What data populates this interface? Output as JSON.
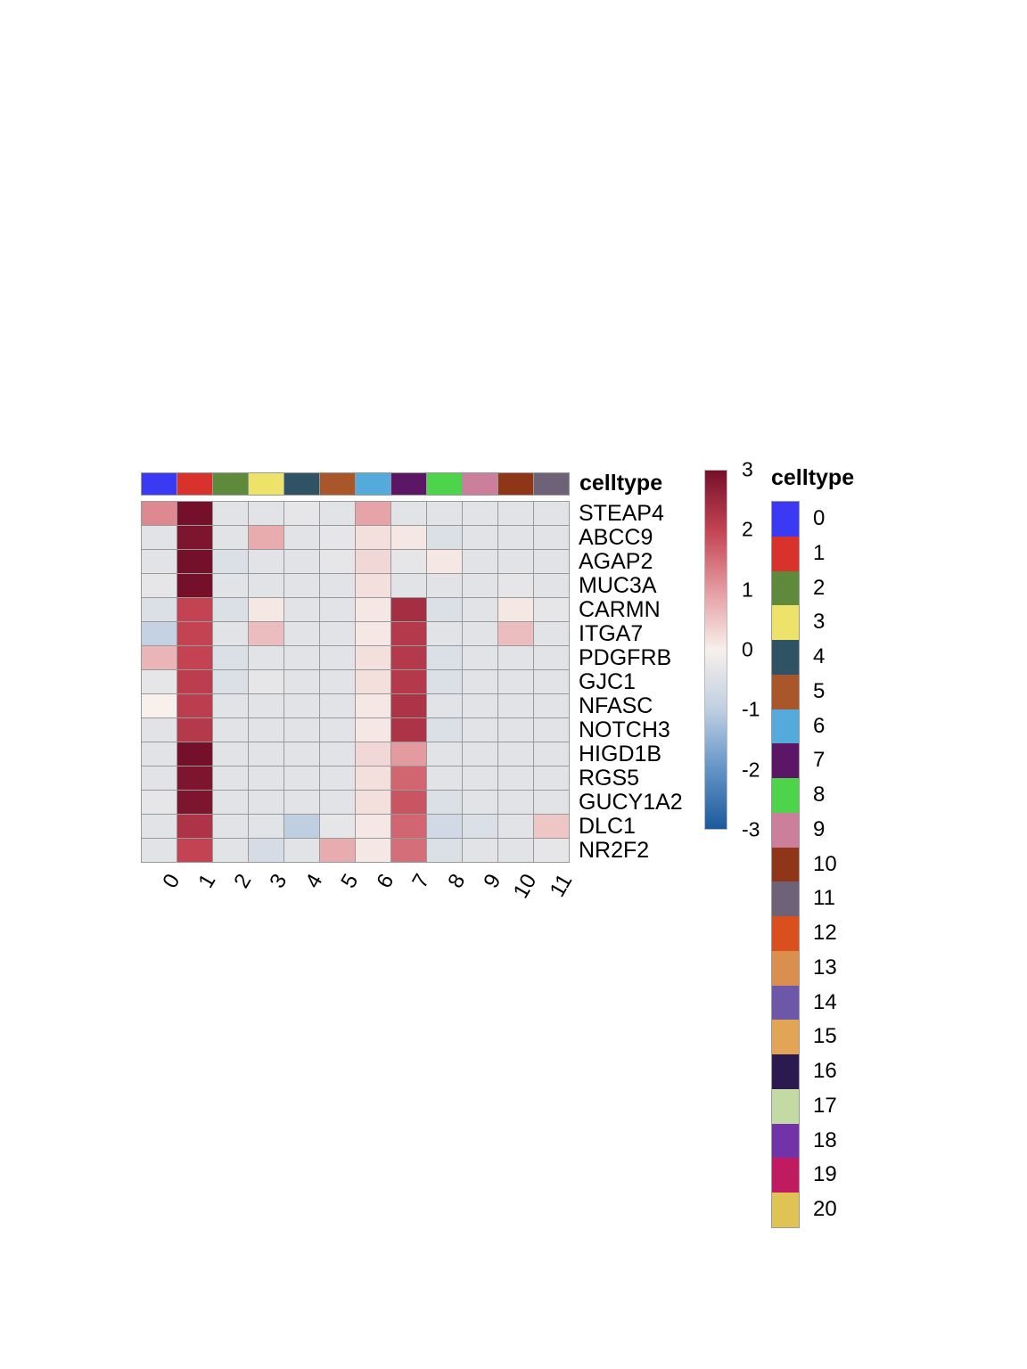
{
  "chart_data": {
    "type": "heatmap",
    "title": "",
    "genes": [
      "STEAP4",
      "ABCC9",
      "AGAP2",
      "MUC3A",
      "CARMN",
      "ITGA7",
      "PDGFRB",
      "GJC1",
      "NFASC",
      "NOTCH3",
      "HIGD1B",
      "RGS5",
      "GUCY1A2",
      "DLC1",
      "NR2F2"
    ],
    "clusters": [
      "0",
      "1",
      "2",
      "3",
      "4",
      "5",
      "6",
      "7",
      "8",
      "9",
      "10",
      "11"
    ],
    "values": [
      [
        1.2,
        3.0,
        -0.4,
        -0.4,
        -0.3,
        -0.4,
        0.9,
        -0.4,
        -0.4,
        -0.4,
        -0.4,
        -0.4
      ],
      [
        -0.4,
        2.9,
        -0.4,
        0.8,
        -0.4,
        -0.3,
        0.2,
        0.1,
        -0.5,
        -0.4,
        -0.4,
        -0.4
      ],
      [
        -0.4,
        3.0,
        -0.5,
        -0.4,
        -0.4,
        -0.3,
        0.3,
        -0.3,
        0.1,
        -0.4,
        -0.4,
        -0.4
      ],
      [
        -0.3,
        3.0,
        -0.4,
        -0.4,
        -0.4,
        -0.4,
        0.2,
        -0.4,
        -0.4,
        -0.4,
        -0.3,
        -0.4
      ],
      [
        -0.5,
        2.0,
        -0.5,
        0.1,
        -0.4,
        -0.4,
        0.1,
        2.4,
        -0.5,
        -0.4,
        0.1,
        -0.3
      ],
      [
        -0.9,
        2.0,
        -0.4,
        0.6,
        -0.4,
        -0.4,
        0.1,
        2.2,
        -0.4,
        -0.4,
        0.6,
        -0.4
      ],
      [
        0.7,
        2.0,
        -0.5,
        -0.4,
        -0.4,
        -0.4,
        0.2,
        2.2,
        -0.5,
        -0.4,
        -0.4,
        -0.4
      ],
      [
        -0.3,
        2.1,
        -0.5,
        -0.3,
        -0.4,
        -0.4,
        0.2,
        2.2,
        -0.5,
        -0.4,
        -0.4,
        -0.4
      ],
      [
        0.0,
        2.1,
        -0.4,
        -0.4,
        -0.4,
        -0.4,
        0.1,
        2.3,
        -0.4,
        -0.4,
        -0.4,
        -0.4
      ],
      [
        -0.4,
        2.2,
        -0.4,
        -0.4,
        -0.4,
        -0.4,
        0.1,
        2.3,
        -0.5,
        -0.4,
        -0.4,
        -0.4
      ],
      [
        -0.4,
        3.0,
        -0.4,
        -0.4,
        -0.4,
        -0.4,
        0.3,
        1.0,
        -0.4,
        -0.4,
        -0.4,
        -0.4
      ],
      [
        -0.4,
        2.9,
        -0.4,
        -0.4,
        -0.4,
        -0.4,
        0.2,
        1.6,
        -0.4,
        -0.4,
        -0.4,
        -0.4
      ],
      [
        -0.3,
        2.9,
        -0.4,
        -0.4,
        -0.4,
        -0.4,
        0.2,
        1.8,
        -0.5,
        -0.4,
        -0.4,
        -0.4
      ],
      [
        -0.4,
        2.3,
        -0.4,
        -0.4,
        -1.0,
        -0.3,
        0.1,
        1.6,
        -0.7,
        -0.5,
        -0.4,
        0.5
      ],
      [
        -0.4,
        2.0,
        -0.4,
        -0.6,
        -0.4,
        0.8,
        0.1,
        1.5,
        -0.5,
        -0.4,
        -0.4,
        -0.3
      ]
    ],
    "value_scale": {
      "min": -3,
      "max": 3
    },
    "colorbar_ticks": [
      "3",
      "2",
      "1",
      "0",
      "-1",
      "-2",
      "-3"
    ],
    "color_scale": {
      "stops": [
        {
          "value": -3,
          "color": "#1C5A9C"
        },
        {
          "value": -2,
          "color": "#6394C6"
        },
        {
          "value": -1,
          "color": "#BFCFE2"
        },
        {
          "value": 0,
          "color": "#F7F0EB"
        },
        {
          "value": 1,
          "color": "#E49BA0"
        },
        {
          "value": 2,
          "color": "#C44352"
        },
        {
          "value": 3,
          "color": "#75102B"
        }
      ]
    },
    "column_annotation": {
      "title": "celltype",
      "colors": [
        "#3A3AF5",
        "#D9312B",
        "#5F8A3C",
        "#EDE26A",
        "#2F5265",
        "#A9562B",
        "#55AADC",
        "#5B1766",
        "#4ED44A",
        "#CC7F9B",
        "#8E3617",
        "#6E6279"
      ]
    },
    "legend": {
      "title": "celltype",
      "entries": [
        {
          "label": "0",
          "color": "#3A3AF5"
        },
        {
          "label": "1",
          "color": "#D9312B"
        },
        {
          "label": "2",
          "color": "#5F8A3C"
        },
        {
          "label": "3",
          "color": "#EDE26A"
        },
        {
          "label": "4",
          "color": "#2F5265"
        },
        {
          "label": "5",
          "color": "#A9562B"
        },
        {
          "label": "6",
          "color": "#55AADC"
        },
        {
          "label": "7",
          "color": "#5B1766"
        },
        {
          "label": "8",
          "color": "#4ED44A"
        },
        {
          "label": "9",
          "color": "#CC7F9B"
        },
        {
          "label": "10",
          "color": "#8E3617"
        },
        {
          "label": "11",
          "color": "#6E6279"
        },
        {
          "label": "12",
          "color": "#D94F1E"
        },
        {
          "label": "13",
          "color": "#DA8F4E"
        },
        {
          "label": "14",
          "color": "#6D57A8"
        },
        {
          "label": "15",
          "color": "#E2A455"
        },
        {
          "label": "16",
          "color": "#2A1A50"
        },
        {
          "label": "17",
          "color": "#C3DAA5"
        },
        {
          "label": "18",
          "color": "#7232A8"
        },
        {
          "label": "19",
          "color": "#C01A60"
        },
        {
          "label": "20",
          "color": "#DFC355"
        }
      ]
    }
  }
}
